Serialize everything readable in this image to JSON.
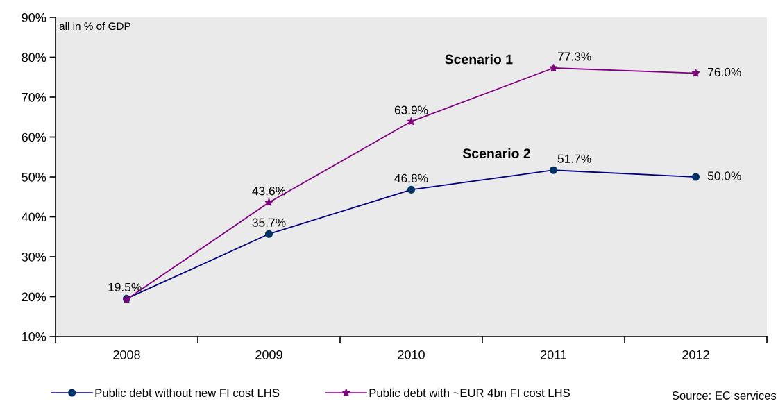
{
  "chart_data": {
    "type": "line",
    "categories": [
      "2008",
      "2009",
      "2010",
      "2011",
      "2012"
    ],
    "series": [
      {
        "name": "Public debt without new FI cost LHS",
        "color": "#000080",
        "marker": "circle",
        "values": [
          19.5,
          35.7,
          46.8,
          51.7,
          50.0
        ],
        "value_labels": [
          "19.5%",
          "35.7%",
          "46.8%",
          "51.7%",
          "50.0%"
        ]
      },
      {
        "name": "Public debt with ~EUR 4bn FI cost LHS",
        "color": "#800080",
        "marker": "star",
        "values": [
          19.3,
          43.6,
          63.9,
          77.3,
          76.0
        ],
        "value_labels": [
          null,
          "43.6%",
          "63.9%",
          "77.3%",
          "76.0%"
        ]
      }
    ],
    "ylim": [
      10,
      90
    ],
    "yticks": [
      {
        "value": 10,
        "label": "10%"
      },
      {
        "value": 20,
        "label": "20%"
      },
      {
        "value": 30,
        "label": "30%"
      },
      {
        "value": 40,
        "label": "40%"
      },
      {
        "value": 50,
        "label": "50%"
      },
      {
        "value": 60,
        "label": "60%"
      },
      {
        "value": 70,
        "label": "70%"
      },
      {
        "value": 80,
        "label": "80%"
      },
      {
        "value": 90,
        "label": "90%"
      }
    ],
    "grid": false,
    "legend": "bottom",
    "annotations": [
      "all in % of GDP",
      "Scenario 1",
      "Scenario 2",
      "Source: EC services"
    ]
  }
}
